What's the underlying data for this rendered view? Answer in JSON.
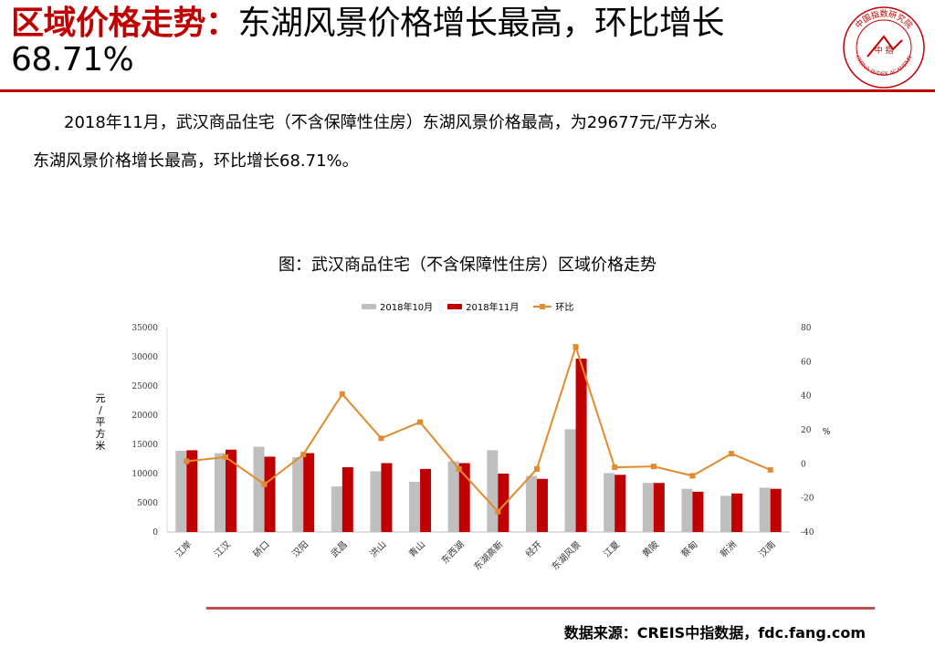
{
  "header": {
    "title_highlight": "区域价格走势：",
    "title_rest": "东湖风景价格增长最高，环比增长68.71%"
  },
  "logo": {
    "top_text": "中国指数研究院",
    "center_text": "中 指",
    "bottom_text": "CHINA INDEX ACADEMY"
  },
  "paragraphs": [
    "2018年11月，武汉商品住宅（不含保障性住房）东湖风景价格最高，为29677元/平方米。",
    "东湖风景价格增长最高，环比增长68.71%。"
  ],
  "chart_caption": "图：武汉商品住宅（不含保障性住房）区域价格走势",
  "source": "数据来源：CREIS中指数据，fdc.fang.com",
  "colors": {
    "series_oct": "#bfbfbf",
    "series_nov": "#c00000",
    "series_mom": "#e28b2e",
    "accent": "#c00000"
  },
  "chart_data": {
    "type": "bar",
    "categories": [
      "江岸",
      "江汉",
      "硚口",
      "汉阳",
      "武昌",
      "洪山",
      "青山",
      "东西湖",
      "东湖高新",
      "经开",
      "东湖风景",
      "江夏",
      "黄陂",
      "蔡甸",
      "新洲",
      "汉南"
    ],
    "series": [
      {
        "name": "2018年10月",
        "type": "bar",
        "axis": "left",
        "values": [
          13900,
          13500,
          14600,
          12800,
          7800,
          10400,
          8600,
          12100,
          14000,
          9600,
          17600,
          10100,
          8400,
          7400,
          6200,
          7600
        ]
      },
      {
        "name": "2018年11月",
        "type": "bar",
        "axis": "left",
        "values": [
          14000,
          14100,
          12900,
          13500,
          11100,
          11800,
          10800,
          11800,
          10000,
          9100,
          29677,
          9800,
          8400,
          6900,
          6600,
          7400
        ]
      },
      {
        "name": "环比",
        "type": "line",
        "axis": "right",
        "values": [
          1.5,
          4,
          -12,
          5.5,
          41,
          15,
          24.5,
          -3,
          -28,
          -3,
          68.71,
          -2,
          -1.5,
          -7,
          6,
          -3.5
        ]
      }
    ],
    "ylabel": "元/平方米",
    "ylabel_right": "%",
    "ylim": [
      0,
      35000
    ],
    "yticks": [
      "0",
      "5000",
      "10000",
      "15000",
      "20000",
      "25000",
      "30000",
      "35000"
    ],
    "ylim_right": [
      -40,
      80
    ],
    "yticks_right": [
      "-40",
      "-20",
      "0",
      "20",
      "40",
      "60",
      "80"
    ],
    "legend_position": "top"
  }
}
